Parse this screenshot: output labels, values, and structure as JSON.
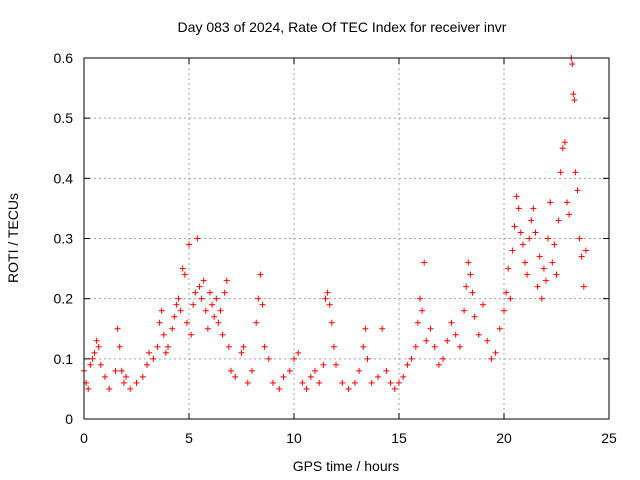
{
  "chart_data": {
    "type": "scatter",
    "title": "Day 083 of 2024, Rate Of TEC Index for receiver invr",
    "xlabel": "GPS time / hours",
    "ylabel": "ROTI / TECUs",
    "xlim": [
      0,
      25
    ],
    "ylim": [
      0,
      0.6
    ],
    "xticks": [
      0,
      5,
      10,
      15,
      20,
      25
    ],
    "yticks": [
      0,
      0.1,
      0.2,
      0.3,
      0.4,
      0.5,
      0.6
    ],
    "xtick_labels": [
      "0",
      "5",
      "10",
      "15",
      "20",
      "25"
    ],
    "ytick_labels": [
      "0",
      "0.1",
      "0.2",
      "0.3",
      "0.4",
      "0.5",
      "0.6"
    ],
    "grid": true,
    "marker": "plus",
    "marker_color": "#ff0000",
    "series": [
      {
        "name": "ROTI",
        "points": [
          [
            0.0,
            0.08
          ],
          [
            0.1,
            0.06
          ],
          [
            0.2,
            0.05
          ],
          [
            0.3,
            0.09
          ],
          [
            0.4,
            0.1
          ],
          [
            0.5,
            0.11
          ],
          [
            0.6,
            0.13
          ],
          [
            0.7,
            0.12
          ],
          [
            0.8,
            0.09
          ],
          [
            1.0,
            0.07
          ],
          [
            1.2,
            0.05
          ],
          [
            1.5,
            0.08
          ],
          [
            1.6,
            0.15
          ],
          [
            1.7,
            0.12
          ],
          [
            1.8,
            0.08
          ],
          [
            1.9,
            0.06
          ],
          [
            2.0,
            0.07
          ],
          [
            2.2,
            0.05
          ],
          [
            2.5,
            0.06
          ],
          [
            2.8,
            0.07
          ],
          [
            3.0,
            0.09
          ],
          [
            3.1,
            0.11
          ],
          [
            3.3,
            0.1
          ],
          [
            3.5,
            0.12
          ],
          [
            3.6,
            0.16
          ],
          [
            3.7,
            0.18
          ],
          [
            3.8,
            0.14
          ],
          [
            3.9,
            0.11
          ],
          [
            4.0,
            0.12
          ],
          [
            4.2,
            0.15
          ],
          [
            4.3,
            0.17
          ],
          [
            4.4,
            0.19
          ],
          [
            4.5,
            0.2
          ],
          [
            4.6,
            0.18
          ],
          [
            4.7,
            0.25
          ],
          [
            4.8,
            0.24
          ],
          [
            4.9,
            0.16
          ],
          [
            5.0,
            0.29
          ],
          [
            5.1,
            0.14
          ],
          [
            5.2,
            0.19
          ],
          [
            5.3,
            0.21
          ],
          [
            5.4,
            0.3
          ],
          [
            5.5,
            0.22
          ],
          [
            5.6,
            0.2
          ],
          [
            5.7,
            0.23
          ],
          [
            5.8,
            0.18
          ],
          [
            5.9,
            0.15
          ],
          [
            6.0,
            0.21
          ],
          [
            6.1,
            0.19
          ],
          [
            6.2,
            0.17
          ],
          [
            6.3,
            0.2
          ],
          [
            6.4,
            0.16
          ],
          [
            6.5,
            0.18
          ],
          [
            6.6,
            0.14
          ],
          [
            6.7,
            0.21
          ],
          [
            6.8,
            0.23
          ],
          [
            6.9,
            0.12
          ],
          [
            7.0,
            0.08
          ],
          [
            7.2,
            0.07
          ],
          [
            7.5,
            0.11
          ],
          [
            7.6,
            0.12
          ],
          [
            7.8,
            0.06
          ],
          [
            8.0,
            0.08
          ],
          [
            8.2,
            0.16
          ],
          [
            8.3,
            0.2
          ],
          [
            8.4,
            0.24
          ],
          [
            8.5,
            0.19
          ],
          [
            8.6,
            0.12
          ],
          [
            8.8,
            0.1
          ],
          [
            9.0,
            0.06
          ],
          [
            9.3,
            0.05
          ],
          [
            9.5,
            0.07
          ],
          [
            9.8,
            0.08
          ],
          [
            10.0,
            0.1
          ],
          [
            10.2,
            0.11
          ],
          [
            10.4,
            0.06
          ],
          [
            10.6,
            0.05
          ],
          [
            10.8,
            0.07
          ],
          [
            11.0,
            0.08
          ],
          [
            11.2,
            0.06
          ],
          [
            11.4,
            0.09
          ],
          [
            11.5,
            0.2
          ],
          [
            11.6,
            0.21
          ],
          [
            11.7,
            0.19
          ],
          [
            11.8,
            0.16
          ],
          [
            11.9,
            0.12
          ],
          [
            12.0,
            0.09
          ],
          [
            12.3,
            0.06
          ],
          [
            12.6,
            0.05
          ],
          [
            12.9,
            0.06
          ],
          [
            13.1,
            0.08
          ],
          [
            13.3,
            0.12
          ],
          [
            13.4,
            0.15
          ],
          [
            13.5,
            0.1
          ],
          [
            13.7,
            0.06
          ],
          [
            14.0,
            0.07
          ],
          [
            14.2,
            0.15
          ],
          [
            14.4,
            0.08
          ],
          [
            14.6,
            0.06
          ],
          [
            14.8,
            0.05
          ],
          [
            15.0,
            0.06
          ],
          [
            15.2,
            0.07
          ],
          [
            15.4,
            0.09
          ],
          [
            15.6,
            0.1
          ],
          [
            15.8,
            0.12
          ],
          [
            15.9,
            0.16
          ],
          [
            16.0,
            0.2
          ],
          [
            16.1,
            0.18
          ],
          [
            16.2,
            0.26
          ],
          [
            16.3,
            0.13
          ],
          [
            16.5,
            0.15
          ],
          [
            16.7,
            0.12
          ],
          [
            16.9,
            0.09
          ],
          [
            17.1,
            0.1
          ],
          [
            17.3,
            0.13
          ],
          [
            17.5,
            0.16
          ],
          [
            17.7,
            0.14
          ],
          [
            17.9,
            0.12
          ],
          [
            18.1,
            0.18
          ],
          [
            18.2,
            0.22
          ],
          [
            18.3,
            0.26
          ],
          [
            18.4,
            0.24
          ],
          [
            18.5,
            0.21
          ],
          [
            18.6,
            0.17
          ],
          [
            18.8,
            0.14
          ],
          [
            19.0,
            0.19
          ],
          [
            19.2,
            0.13
          ],
          [
            19.4,
            0.1
          ],
          [
            19.6,
            0.11
          ],
          [
            19.8,
            0.15
          ],
          [
            20.0,
            0.18
          ],
          [
            20.1,
            0.21
          ],
          [
            20.2,
            0.25
          ],
          [
            20.3,
            0.2
          ],
          [
            20.4,
            0.28
          ],
          [
            20.5,
            0.32
          ],
          [
            20.6,
            0.37
          ],
          [
            20.7,
            0.35
          ],
          [
            20.8,
            0.31
          ],
          [
            20.9,
            0.29
          ],
          [
            21.0,
            0.26
          ],
          [
            21.1,
            0.24
          ],
          [
            21.2,
            0.3
          ],
          [
            21.3,
            0.33
          ],
          [
            21.4,
            0.35
          ],
          [
            21.5,
            0.31
          ],
          [
            21.6,
            0.22
          ],
          [
            21.7,
            0.27
          ],
          [
            21.8,
            0.2
          ],
          [
            21.9,
            0.25
          ],
          [
            22.0,
            0.23
          ],
          [
            22.1,
            0.3
          ],
          [
            22.2,
            0.36
          ],
          [
            22.3,
            0.26
          ],
          [
            22.4,
            0.29
          ],
          [
            22.5,
            0.24
          ],
          [
            22.6,
            0.33
          ],
          [
            22.7,
            0.41
          ],
          [
            22.8,
            0.45
          ],
          [
            22.9,
            0.46
          ],
          [
            23.0,
            0.36
          ],
          [
            23.1,
            0.34
          ],
          [
            23.2,
            0.6
          ],
          [
            23.25,
            0.59
          ],
          [
            23.3,
            0.54
          ],
          [
            23.35,
            0.53
          ],
          [
            23.4,
            0.41
          ],
          [
            23.5,
            0.38
          ],
          [
            23.6,
            0.3
          ],
          [
            23.7,
            0.27
          ],
          [
            23.8,
            0.22
          ],
          [
            23.9,
            0.28
          ]
        ]
      }
    ]
  }
}
